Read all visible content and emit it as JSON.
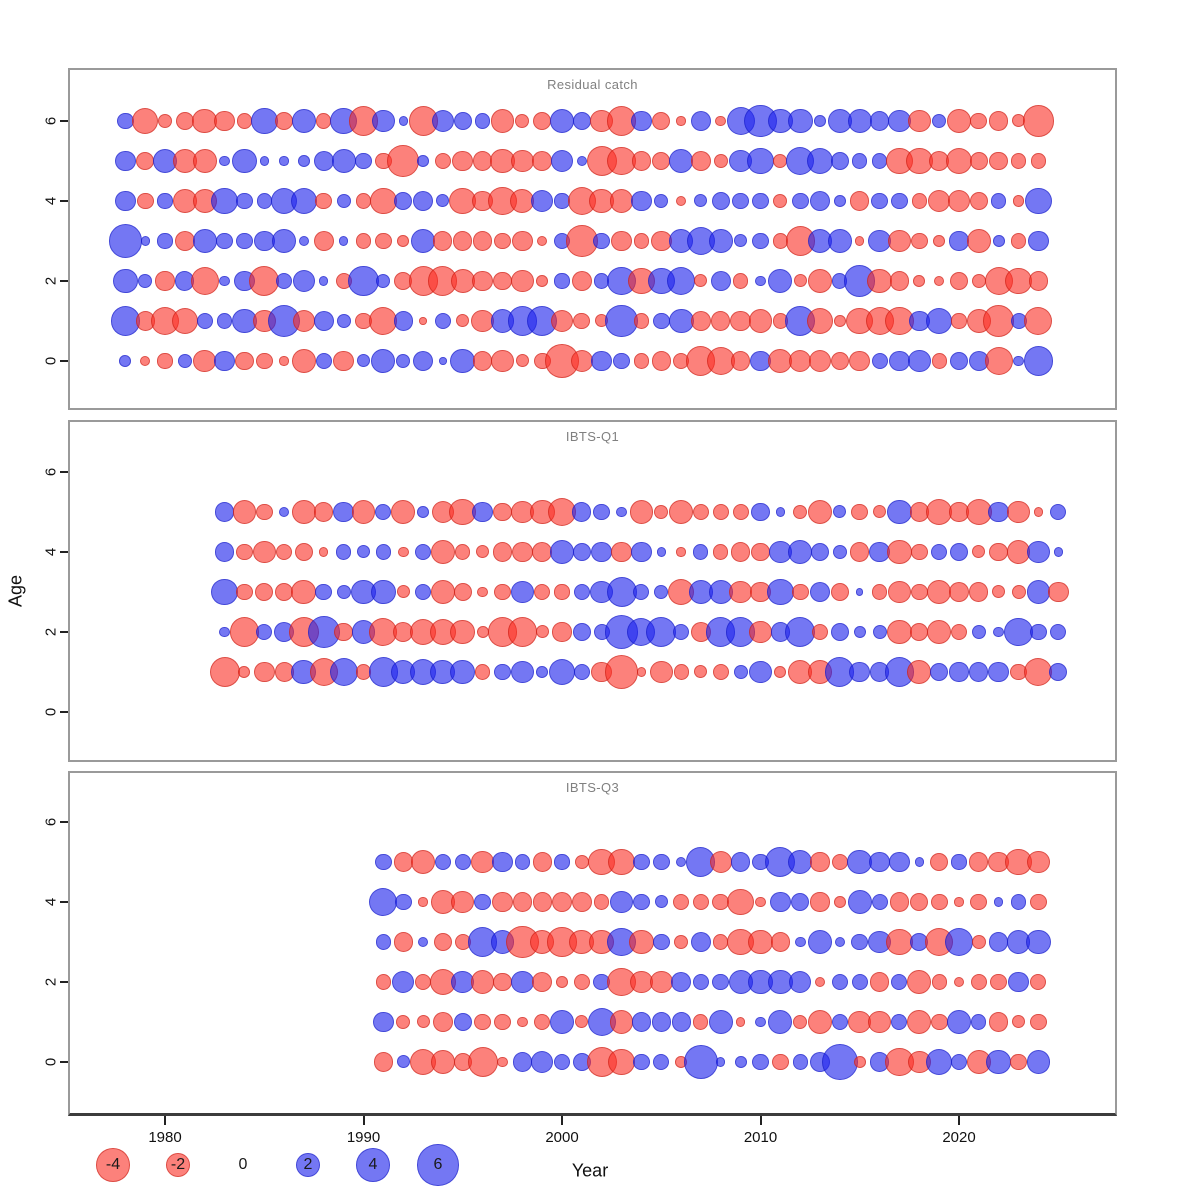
{
  "figure_titles": [
    "Residual catch",
    "IBTS-Q1",
    "IBTS-Q3"
  ],
  "axes": {
    "x": {
      "label": "Year",
      "ticks": [
        1980,
        1990,
        2000,
        2010,
        2020
      ],
      "tick_labels": [
        "1980",
        "1990",
        "2000",
        "2010",
        "2020"
      ]
    },
    "y": {
      "label": "Age",
      "ticks": [
        0,
        2,
        4,
        6
      ],
      "tick_labels": [
        "0",
        "2",
        "4",
        "6"
      ]
    }
  },
  "legend": {
    "items": [
      {
        "label": "-4",
        "value": -4
      },
      {
        "label": "-2",
        "value": -2
      },
      {
        "label": "0",
        "value": 0
      },
      {
        "label": "2",
        "value": 2
      },
      {
        "label": "4",
        "value": 4
      },
      {
        "label": "6",
        "value": 6
      }
    ]
  },
  "colors": {
    "negative_fill": "rgba(250,45,35,0.6)",
    "negative_edge": "rgba(190,25,15,0.5)",
    "positive_fill": "rgba(30,35,235,0.62)",
    "positive_edge": "rgba(20,25,190,0.5)",
    "panel_border": "#9a9a9a",
    "title_color": "#808080"
  },
  "chart_data": [
    {
      "type": "scatter",
      "title": "Residual catch",
      "xlabel": "Year",
      "ylabel": "Age",
      "x_start": 1978,
      "note": "bubble residual plot; value sign = color (blue positive, red negative), radius ~ sqrt(|value|)",
      "series": [
        {
          "age": 6,
          "values": [
            1,
            -2.5,
            -0.7,
            -1.2,
            -2.2,
            -1.5,
            -0.8,
            2.5,
            -1.2,
            2,
            -0.8,
            2.5,
            -3,
            1.8,
            0.3,
            -3,
            1.8,
            1.2,
            0.8,
            -2,
            -0.7,
            -1.2,
            2.2,
            1.2,
            -1.8,
            -3,
            1.5,
            -1.2,
            -0.3,
            1.5,
            -0.4,
            2.8,
            3.8,
            2.2,
            2.2,
            0.5,
            2,
            2,
            1.3,
            1.8,
            -1.8,
            0.7,
            -2,
            -1,
            -1.3,
            -0.6,
            -3.5
          ]
        },
        {
          "age": 5,
          "values": [
            1.5,
            -1.2,
            2.2,
            -2,
            -2,
            0.4,
            2.2,
            0.3,
            0.3,
            0.5,
            1.5,
            2,
            1,
            -1,
            -3.5,
            0.5,
            -1,
            -1.5,
            -1.3,
            -2.2,
            -1.8,
            -1.5,
            1.8,
            0.4,
            -3.2,
            -2.8,
            -1.3,
            -1.2,
            2,
            -1.5,
            -0.7,
            1.8,
            2.5,
            -0.7,
            2.8,
            2.5,
            1.2,
            0.8,
            0.8,
            -2.5,
            -2.5,
            -1.5,
            -2.5,
            -1.2,
            -1.2,
            -0.8,
            -0.8
          ]
        },
        {
          "age": 4,
          "values": [
            1.5,
            -1,
            0.8,
            -2,
            -2,
            2.5,
            1,
            0.8,
            2.5,
            2.5,
            -1,
            0.7,
            -0.8,
            -2.5,
            1.2,
            1.5,
            0.6,
            -2.5,
            -1.5,
            -2.8,
            -2,
            1.8,
            0.8,
            -2.8,
            -2.2,
            -2,
            1.5,
            0.7,
            -0.4,
            0.6,
            1.2,
            1,
            1,
            -0.7,
            1,
            1.5,
            0.5,
            -1.3,
            1,
            1,
            -0.8,
            -1.8,
            -1.8,
            -1.2,
            0.8,
            -0.5,
            2.5
          ]
        },
        {
          "age": 3,
          "values": [
            4,
            0.3,
            0.8,
            -1.5,
            2,
            1,
            1,
            1.5,
            2,
            0.4,
            -1.5,
            0.3,
            -0.8,
            -1,
            -0.5,
            2,
            -1.3,
            -1.3,
            -1.3,
            -1,
            -1.5,
            -0.4,
            1,
            -3.5,
            1,
            -1.5,
            -0.8,
            -1.5,
            2,
            2.8,
            2,
            0.6,
            1,
            -0.8,
            -3,
            2.2,
            2,
            -0.3,
            1.8,
            -1.8,
            -1,
            -0.5,
            1.3,
            -2,
            0.5,
            -0.8,
            1.5
          ]
        },
        {
          "age": 2,
          "values": [
            2.2,
            0.7,
            -1.3,
            1.3,
            -2.8,
            0.4,
            1.5,
            -3.2,
            1,
            1.8,
            0.3,
            -0.9,
            3.2,
            0.7,
            -1.2,
            -3,
            -3,
            -2,
            -1.5,
            -1.2,
            -1.8,
            -0.5,
            0.8,
            -1.5,
            0.8,
            2.8,
            -2.5,
            2.5,
            2.8,
            -0.6,
            1.5,
            -0.8,
            0.4,
            2,
            -0.6,
            -2,
            0.8,
            3.5,
            -2.2,
            -1.3,
            -0.5,
            -0.4,
            -1.2,
            -0.7,
            -2.8,
            -2.5,
            -1.3
          ]
        },
        {
          "age": 1,
          "values": [
            3,
            -1.3,
            -2.8,
            -2.5,
            0.9,
            0.8,
            2.2,
            -1.8,
            3.8,
            -1.8,
            1.5,
            0.7,
            -1,
            -2.8,
            1.3,
            -0.2,
            1,
            -0.6,
            -1.8,
            2,
            3,
            3.2,
            -1.8,
            -1,
            -0.6,
            3.8,
            -0.8,
            1,
            2.2,
            -1.5,
            -1.3,
            -1.5,
            -2,
            -0.8,
            3.2,
            -2.5,
            -0.5,
            -2.5,
            -2.8,
            -2.8,
            1.5,
            2.5,
            -0.8,
            -2,
            -3.5,
            0.9,
            -2.8
          ]
        },
        {
          "age": 0,
          "values": [
            0.5,
            -0.4,
            -0.8,
            0.7,
            -1.8,
            1.5,
            -1.2,
            -1,
            -0.3,
            -2,
            0.9,
            -1.5,
            0.6,
            2,
            0.7,
            1.5,
            0.2,
            2.2,
            -1.3,
            -1.8,
            -0.6,
            -1,
            -4,
            -1.8,
            1.5,
            1,
            -0.8,
            -1.3,
            -1,
            -3,
            -2.8,
            -1.3,
            1.5,
            -2,
            -1.8,
            -1.8,
            -1.2,
            -1.5,
            0.9,
            1.5,
            1.8,
            -0.8,
            1.2,
            1.5,
            -2.8,
            0.4,
            3
          ]
        }
      ]
    },
    {
      "type": "scatter",
      "title": "IBTS-Q1",
      "xlabel": "Year",
      "ylabel": "Age",
      "x_start": 1983,
      "series": [
        {
          "age": 5,
          "values": [
            1.3,
            -2,
            -1,
            0.4,
            -2,
            -1.3,
            1.5,
            -2,
            0.9,
            -2,
            0.5,
            -1.8,
            -2.5,
            1.5,
            -1.2,
            -1.8,
            -2.2,
            -2.8,
            1.3,
            1,
            0.4,
            -2,
            -0.7,
            -2,
            -1,
            -0.9,
            -0.9,
            1.2,
            0.3,
            -0.7,
            -2.2,
            0.6,
            -1,
            -0.6,
            2.2,
            -1.3,
            -2.5,
            -1.3,
            -2.5,
            1.5,
            -1.8,
            -0.3,
            0.9
          ]
        },
        {
          "age": 4,
          "values": [
            1.3,
            -1,
            -1.8,
            -1,
            -1.2,
            -0.3,
            0.8,
            0.6,
            0.8,
            -0.4,
            0.9,
            -2,
            -0.8,
            -0.6,
            -1.3,
            -1.5,
            -1.5,
            2,
            1.2,
            1.5,
            -1.5,
            1.5,
            0.3,
            -0.3,
            0.8,
            -0.8,
            -1.3,
            -1.2,
            1.8,
            2,
            1.2,
            0.7,
            -1.3,
            1.5,
            -2.2,
            -1,
            0.9,
            1.2,
            -0.6,
            -1.2,
            -2,
            1.8,
            0.3
          ]
        },
        {
          "age": 3,
          "values": [
            2.5,
            -1,
            -1.2,
            -1.2,
            -2.2,
            1,
            0.7,
            2.2,
            2.2,
            -0.6,
            0.9,
            -2,
            -1.2,
            -0.4,
            -1,
            1.8,
            -0.9,
            -0.8,
            0.9,
            1.8,
            3.2,
            0.9,
            0.7,
            -2.5,
            2,
            2,
            -1.8,
            -1.5,
            2.5,
            -1,
            1.5,
            -1.2,
            0.2,
            -0.8,
            -1.8,
            -1,
            -2,
            -1.5,
            -1.3,
            -0.6,
            -0.7,
            2,
            -1.5
          ]
        },
        {
          "age": 2,
          "values": [
            0.4,
            -3,
            0.9,
            1.5,
            -3.2,
            3.5,
            -1.2,
            2,
            -2.8,
            -1.5,
            -2.5,
            -2.5,
            -2.2,
            -0.5,
            -3,
            -3,
            -0.6,
            -1.3,
            1.2,
            0.9,
            4,
            2.8,
            3.2,
            1,
            -1.5,
            3,
            3,
            -1.8,
            1.3,
            3.2,
            -1,
            1.2,
            0.5,
            0.7,
            -2.2,
            -1.2,
            -2,
            -1,
            0.7,
            0.4,
            2.8,
            1,
            0.9
          ]
        },
        {
          "age": 1,
          "values": [
            -3.2,
            -0.5,
            -1.5,
            -1.3,
            2.2,
            -2.8,
            2.8,
            -0.8,
            3,
            2,
            2.5,
            2.2,
            2.2,
            -0.8,
            1,
            1.8,
            0.5,
            2.5,
            0.9,
            -1.5,
            -4,
            -0.3,
            -1.8,
            -0.8,
            -0.6,
            -0.9,
            0.7,
            1.8,
            -0.5,
            -2,
            -2,
            3,
            1.5,
            1.3,
            3,
            -2,
            1.2,
            1.3,
            1.3,
            1.5,
            -1,
            -2.8,
            1.2
          ]
        }
      ]
    },
    {
      "type": "scatter",
      "title": "IBTS-Q3",
      "xlabel": "Year",
      "ylabel": "Age",
      "x_start": 1991,
      "series": [
        {
          "age": 5,
          "values": [
            1,
            -1.3,
            -2.2,
            1,
            0.9,
            -1.8,
            1.5,
            0.8,
            -1.3,
            0.8,
            -0.7,
            -2.5,
            -2.5,
            1,
            1,
            0.4,
            3,
            -1.8,
            1.3,
            1,
            3.2,
            2,
            -1.3,
            -1,
            2.2,
            1.5,
            1.5,
            0.3,
            -1.2,
            0.8,
            -1.3,
            -1.5,
            -2.5,
            -1.8
          ]
        },
        {
          "age": 4,
          "values": [
            2.8,
            1,
            -0.3,
            -2,
            -1.8,
            1,
            -1.5,
            -1.3,
            -1.3,
            -1.5,
            -1.5,
            -0.8,
            1.8,
            1,
            0.6,
            -0.9,
            -1,
            -1,
            -2.5,
            -0.4,
            1.5,
            1.2,
            -1.3,
            -0.5,
            2,
            0.9,
            -1.3,
            -1.2,
            -1,
            -0.3,
            -1,
            0.3,
            0.8,
            -1
          ]
        },
        {
          "age": 3,
          "values": [
            0.8,
            -1.3,
            0.4,
            -1.2,
            -0.9,
            3,
            2,
            -3.8,
            -2,
            -3,
            -2.2,
            -2.2,
            2.8,
            -2.2,
            1,
            -0.7,
            1.5,
            -0.8,
            -2.5,
            -2.2,
            -1.3,
            0.4,
            2,
            0.4,
            1,
            1.8,
            -2.5,
            1.2,
            -2.8,
            2.8,
            -0.7,
            1.3,
            2,
            2.2
          ]
        },
        {
          "age": 2,
          "values": [
            -0.8,
            1.8,
            -1,
            -2.5,
            1.8,
            -2,
            -1.2,
            1.8,
            -1.5,
            -0.5,
            -0.9,
            1,
            -2.8,
            -1.8,
            -1.8,
            1.5,
            0.9,
            1,
            2,
            2.2,
            2.2,
            1.8,
            -0.4,
            0.9,
            0.9,
            -1.3,
            0.9,
            -2,
            -0.8,
            -0.4,
            -0.9,
            -1,
            1.5,
            -0.9
          ]
        },
        {
          "age": 1,
          "values": [
            1.5,
            -0.7,
            -0.6,
            -1.5,
            1.2,
            -1,
            -1,
            -0.4,
            -0.9,
            2,
            -0.6,
            2.8,
            -2,
            1.3,
            1.3,
            1.3,
            -0.8,
            2,
            -0.3,
            0.4,
            2,
            -0.7,
            -2.2,
            1,
            -1.8,
            -1.8,
            0.9,
            -2,
            -1,
            2,
            0.8,
            -1.3,
            -0.6,
            -1
          ]
        },
        {
          "age": 0,
          "values": [
            -1.3,
            0.6,
            -2.5,
            -2,
            -1.2,
            -3.2,
            -0.4,
            1.3,
            1.8,
            0.9,
            1.2,
            -3.2,
            -2.5,
            1,
            0.9,
            -0.5,
            4,
            0.3,
            0.5,
            1,
            -1,
            0.8,
            1.5,
            4.5,
            -0.5,
            1.3,
            -2.8,
            -1.8,
            2.5,
            0.9,
            -2,
            2.2,
            -1,
            2
          ]
        }
      ]
    }
  ]
}
